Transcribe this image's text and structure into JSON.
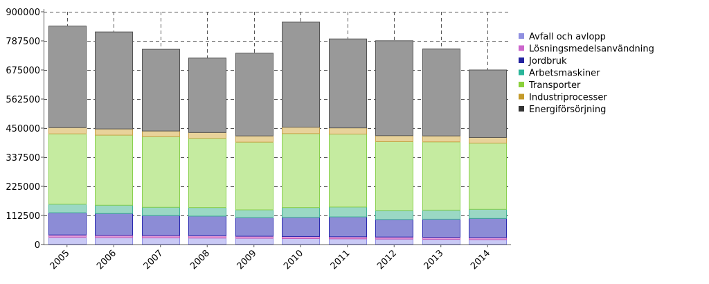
{
  "chart_data": {
    "type": "bar",
    "stacked": true,
    "title": "",
    "xlabel": "",
    "ylabel": "",
    "categories": [
      "2005",
      "2006",
      "2007",
      "2008",
      "2009",
      "2010",
      "2011",
      "2012",
      "2013",
      "2014"
    ],
    "ylim": [
      0,
      900000
    ],
    "yticks": [
      "0",
      "112500",
      "225000",
      "337500",
      "450000",
      "562500",
      "675000",
      "787500",
      "900000"
    ],
    "yticks_values": [
      0,
      112500,
      225000,
      337500,
      450000,
      562500,
      675000,
      787500,
      900000
    ],
    "grid": "dashed",
    "legend_position": "right",
    "legend": [
      "Avfall och avlopp",
      "Lösningsmedelsanvändning",
      "Jordbruk",
      "Arbetsmaskiner",
      "Transporter",
      "Industriprocesser",
      "Energiförsörjning"
    ],
    "segments": [
      {
        "name": "Avfall och avlopp",
        "fill": "#c9c9f5",
        "stroke": "#8d8de6",
        "legend_color": "#8f8fe0",
        "values": [
          28000,
          27000,
          26000,
          25000,
          24000,
          23000,
          22000,
          21000,
          20000,
          19000
        ]
      },
      {
        "name": "Lösningsmedelsanvändning",
        "fill": "#e59ad6",
        "stroke": "#c45cb8",
        "legend_color": "#cc66cc",
        "values": [
          9000,
          9000,
          9000,
          9000,
          8000,
          8000,
          8000,
          8000,
          8000,
          8000
        ]
      },
      {
        "name": "Jordbruk",
        "fill": "#8c8cd6",
        "stroke": "#2a2ab0",
        "legend_color": "#2323a0",
        "values": [
          86000,
          84000,
          77000,
          76000,
          72000,
          74000,
          77000,
          68000,
          70000,
          74000
        ]
      },
      {
        "name": "Arbetsmaskiner",
        "fill": "#9ad8c4",
        "stroke": "#44b597",
        "legend_color": "#2ab59a",
        "values": [
          33000,
          32000,
          32000,
          33000,
          30000,
          38000,
          38000,
          35000,
          35000,
          35000
        ]
      },
      {
        "name": "Transporter",
        "fill": "#c5eba0",
        "stroke": "#8ad04f",
        "legend_color": "#8ad03a",
        "values": [
          272000,
          271000,
          273000,
          268000,
          262000,
          286000,
          282000,
          266000,
          264000,
          256000
        ]
      },
      {
        "name": "Industriprocesser",
        "fill": "#e8d29a",
        "stroke": "#c9a44a",
        "legend_color": "#c49a2a",
        "values": [
          24000,
          24000,
          22000,
          22000,
          24000,
          25000,
          24000,
          23000,
          23000,
          22000
        ]
      },
      {
        "name": "Energiförsörjning",
        "fill": "#999999",
        "stroke": "#555555",
        "legend_color": "#333333",
        "values": [
          393000,
          375000,
          316000,
          288000,
          320000,
          406000,
          344000,
          367000,
          336000,
          261000
        ]
      }
    ]
  }
}
